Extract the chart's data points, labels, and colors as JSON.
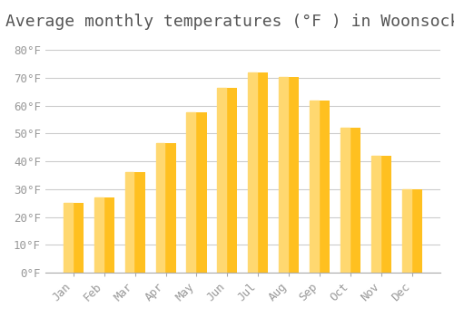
{
  "title": "Average monthly temperatures (°F ) in Woonsocket",
  "months": [
    "Jan",
    "Feb",
    "Mar",
    "Apr",
    "May",
    "Jun",
    "Jul",
    "Aug",
    "Sep",
    "Oct",
    "Nov",
    "Dec"
  ],
  "values": [
    25,
    27,
    36,
    46.5,
    57.5,
    66.5,
    72,
    70.5,
    62,
    52,
    42,
    30
  ],
  "bar_color_main": "#FFC020",
  "bar_color_light": "#FFD870",
  "background_color": "#FFFFFF",
  "plot_bg_color": "#FFFFFF",
  "grid_color": "#CCCCCC",
  "title_color": "#555555",
  "tick_color": "#999999",
  "ylim": [
    0,
    85
  ],
  "yticks": [
    0,
    10,
    20,
    30,
    40,
    50,
    60,
    70,
    80
  ],
  "ytick_labels": [
    "0°F",
    "10°F",
    "20°F",
    "30°F",
    "40°F",
    "50°F",
    "60°F",
    "70°F",
    "80°F"
  ],
  "title_fontsize": 13,
  "tick_fontsize": 9,
  "font_family": "monospace"
}
